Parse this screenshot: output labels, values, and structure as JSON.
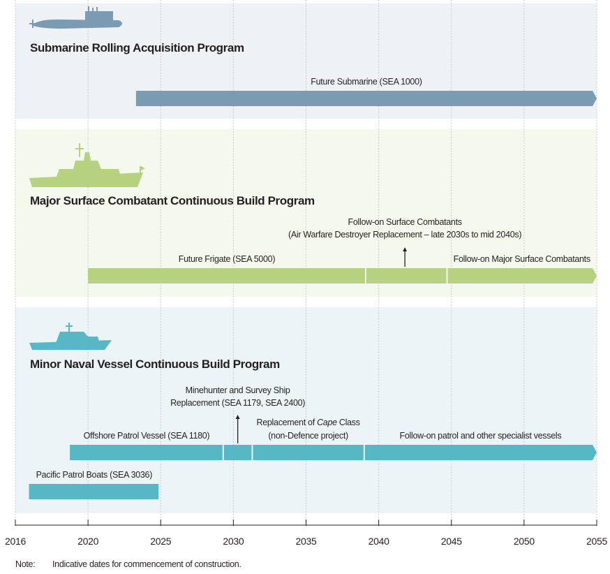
{
  "chart_data": {
    "type": "timeline",
    "xlim": [
      2016,
      2055
    ],
    "xticks": [
      2016,
      2020,
      2025,
      2030,
      2035,
      2040,
      2045,
      2050,
      2055
    ],
    "grid": true,
    "note_label": "Note:",
    "note": "Indicative dates for commencement of construction.",
    "groups": [
      {
        "title": "Submarine Rolling Acquisition Program",
        "color": "#7b9bb3",
        "background": "#eef2f7",
        "rows": [
          [
            {
              "label": [
                "Future Submarine (SEA 1000)"
              ],
              "start": 2023.3,
              "end": 2055
            }
          ]
        ],
        "annotations": []
      },
      {
        "title": "Major Surface Combatant Continuous Build Program",
        "color": "#b6d17f",
        "background": "#f5f8ec",
        "rows": [
          [
            {
              "label": [
                "Future Frigate (SEA 5000)"
              ],
              "start": 2020,
              "end": 2039.1
            },
            {
              "label": null,
              "start": 2039.1,
              "end": 2044.7
            },
            {
              "label": [
                "Follow-on Major Surface Combatants"
              ],
              "start": 2044.7,
              "end": 2055
            }
          ]
        ],
        "annotations": [
          {
            "lines": [
              "Follow-on Surface Combatants",
              "(Air Warfare Destroyer Replacement – late 2030s to mid 2040s)"
            ],
            "x": 2041.8
          }
        ]
      },
      {
        "title": "Minor Naval Vessel Continuous Build Program",
        "color": "#57b7c4",
        "background": "#edf4f8",
        "rows": [
          [
            {
              "label": [
                "Offshore Patrol Vessel (SEA 1180)"
              ],
              "start": 2019,
              "end": 2029.3
            },
            {
              "label": null,
              "start": 2029.3,
              "end": 2031.3
            },
            {
              "label": [
                [
                  "Replacement of ",
                  "Cape",
                  " Class"
                ],
                "(non-Defence project)"
              ],
              "start": 2031.3,
              "end": 2039
            },
            {
              "label": [
                "Follow-on patrol and other specialist vessels"
              ],
              "start": 2039,
              "end": 2055
            }
          ],
          [
            {
              "label": [
                "Pacific Patrol Boats (SEA 3036)"
              ],
              "start": 2016.75,
              "end": 2024.9
            }
          ]
        ],
        "annotations": [
          {
            "lines": [
              "Minehunter and Survey Ship",
              "Replacement (SEA 1179, SEA 2400)"
            ],
            "x": 2030.3
          }
        ]
      }
    ]
  }
}
